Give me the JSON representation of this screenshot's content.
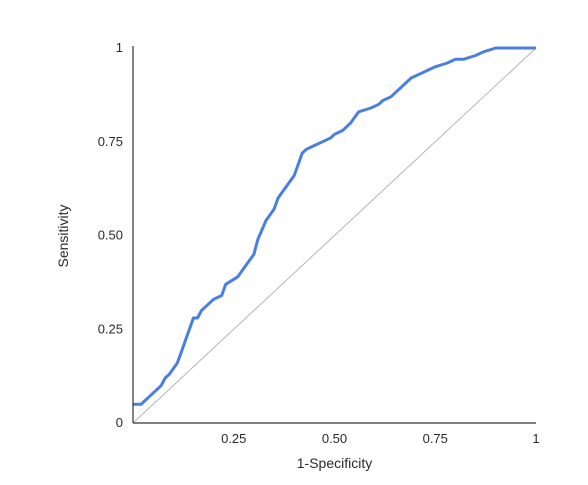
{
  "chart_data": {
    "type": "line",
    "title": "",
    "xlabel": "1-Specificity",
    "ylabel": "Sensitivity",
    "xlim": [
      0,
      1
    ],
    "ylim": [
      0,
      1
    ],
    "grid": false,
    "legend": "none",
    "x_ticks": [
      {
        "value": 0.25,
        "label": "0.25"
      },
      {
        "value": 0.5,
        "label": "0.50"
      },
      {
        "value": 0.75,
        "label": "0.75"
      },
      {
        "value": 1,
        "label": "1"
      }
    ],
    "y_ticks": [
      {
        "value": 0,
        "label": "0"
      },
      {
        "value": 0.25,
        "label": "0.25"
      },
      {
        "value": 0.5,
        "label": "0.50"
      },
      {
        "value": 0.75,
        "label": "0.75"
      },
      {
        "value": 1,
        "label": "1"
      }
    ],
    "reference_line": {
      "x": [
        0,
        1
      ],
      "y": [
        0,
        1
      ],
      "color": "#b5b5b5"
    },
    "series": [
      {
        "color": "#4a7fe0",
        "x": [
          0.0,
          0.02,
          0.03,
          0.04,
          0.05,
          0.06,
          0.07,
          0.08,
          0.09,
          0.11,
          0.12,
          0.13,
          0.14,
          0.15,
          0.16,
          0.17,
          0.2,
          0.22,
          0.23,
          0.26,
          0.28,
          0.3,
          0.31,
          0.33,
          0.35,
          0.36,
          0.38,
          0.4,
          0.42,
          0.43,
          0.45,
          0.47,
          0.49,
          0.5,
          0.52,
          0.54,
          0.56,
          0.59,
          0.61,
          0.62,
          0.64,
          0.66,
          0.69,
          0.71,
          0.73,
          0.75,
          0.78,
          0.8,
          0.82,
          0.85,
          0.87,
          0.9,
          0.93,
          0.95,
          0.97,
          1.0
        ],
        "y": [
          0.05,
          0.05,
          0.06,
          0.07,
          0.08,
          0.09,
          0.1,
          0.12,
          0.13,
          0.16,
          0.19,
          0.22,
          0.25,
          0.28,
          0.28,
          0.3,
          0.33,
          0.34,
          0.37,
          0.39,
          0.42,
          0.45,
          0.49,
          0.54,
          0.57,
          0.6,
          0.63,
          0.66,
          0.72,
          0.73,
          0.74,
          0.75,
          0.76,
          0.77,
          0.78,
          0.8,
          0.83,
          0.84,
          0.85,
          0.86,
          0.87,
          0.89,
          0.92,
          0.93,
          0.94,
          0.95,
          0.96,
          0.97,
          0.97,
          0.98,
          0.99,
          1.0,
          1.0,
          1.0,
          1.0,
          1.0
        ]
      }
    ]
  }
}
